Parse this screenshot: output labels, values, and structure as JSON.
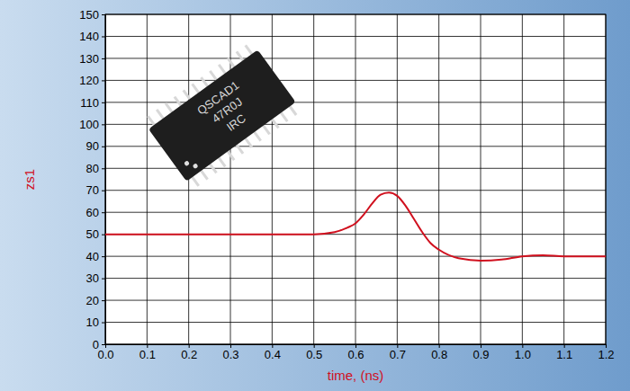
{
  "chart_data": {
    "type": "line",
    "x_label": "time, (ns)",
    "y_label": "zs1",
    "annotations": [
      "QSCAD1",
      "47R0J",
      "IRC"
    ],
    "x": [
      0,
      0.1,
      0.2,
      0.3,
      0.4,
      0.5,
      0.55,
      0.58,
      0.6,
      0.62,
      0.64,
      0.66,
      0.68,
      0.7,
      0.72,
      0.74,
      0.76,
      0.78,
      0.8,
      0.85,
      0.9,
      0.95,
      1.0,
      1.05,
      1.1,
      1.15,
      1.2
    ],
    "values": [
      50,
      50,
      50,
      50,
      50,
      50,
      51,
      53,
      55,
      59,
      64,
      68,
      69,
      67.5,
      63,
      57,
      51,
      46,
      43,
      39,
      38,
      38.5,
      40,
      40.5,
      40,
      40,
      40
    ],
    "color": "#d0101e",
    "xlim": [
      0,
      1.2
    ],
    "xticks": [
      {
        "value": 0,
        "label": "0.0"
      },
      0.1,
      0.2,
      0.3,
      0.4,
      0.5,
      0.6,
      0.7,
      0.8,
      0.9,
      {
        "value": 1,
        "label": "1.0"
      },
      1.1,
      1.2
    ],
    "ylim": [
      0,
      150
    ],
    "yticks": [
      0,
      10,
      20,
      30,
      40,
      50,
      60,
      70,
      80,
      90,
      100,
      110,
      120,
      130,
      140,
      150
    ],
    "grid": true
  }
}
